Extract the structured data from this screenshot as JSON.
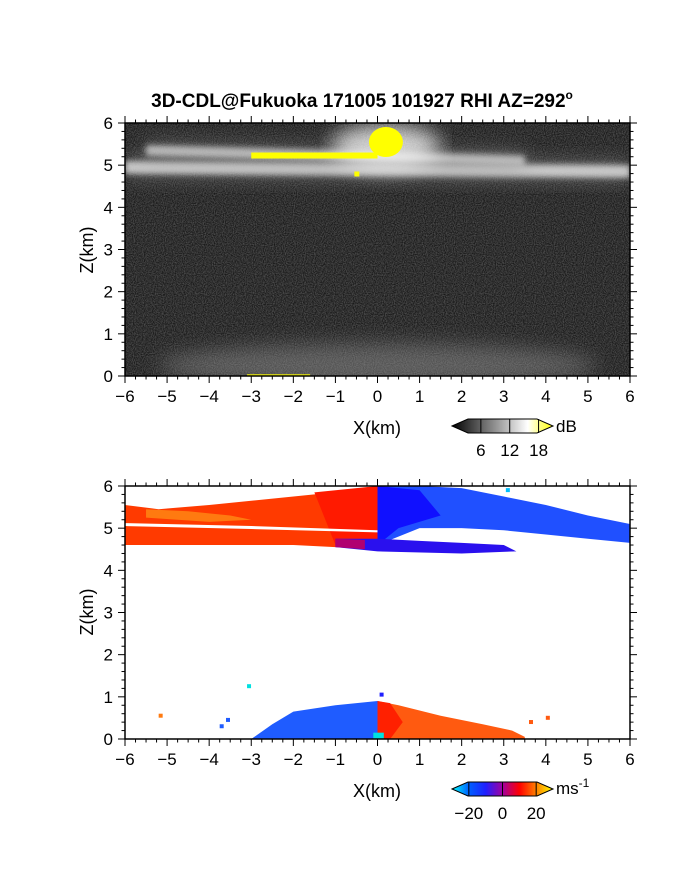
{
  "title": {
    "main": "3D-CDL@Fukuoka 171005 101927 RHI AZ=292",
    "degree": "o"
  },
  "chart_data": [
    {
      "type": "heatmap",
      "panel": "reflectivity",
      "xlabel": "X(km)",
      "ylabel": "Z(km)",
      "xlim": [
        -6,
        6
      ],
      "ylim": [
        0,
        6
      ],
      "xticks": [
        "-6",
        "-5",
        "-4",
        "-3",
        "-2",
        "-1",
        "0",
        "1",
        "2",
        "3",
        "4",
        "5",
        "6"
      ],
      "yticks": [
        "0",
        "1",
        "2",
        "3",
        "4",
        "5",
        "6"
      ],
      "background": "noise",
      "colorbar": {
        "unit": "dB",
        "ticks": [
          "6",
          "12",
          "18"
        ],
        "range": [
          0,
          21
        ],
        "colors": [
          "#000000",
          "#555555",
          "#aaaaaa",
          "#ffffff",
          "#ffff00"
        ]
      },
      "features": [
        {
          "x": [
            -6,
            6
          ],
          "z_center_left": 4.95,
          "z_center_right": 4.85,
          "thickness": 0.3,
          "level": "strong"
        },
        {
          "x": [
            -5.5,
            3.5
          ],
          "z_center_left": 5.35,
          "z_center_right": 5.1,
          "thickness": 0.25,
          "level": "strong"
        },
        {
          "x": [
            -3,
            0
          ],
          "z_center": 5.25,
          "thickness": 0.1,
          "level": "max"
        },
        {
          "x": [
            -0.2,
            0.6
          ],
          "z_center": 5.55,
          "thickness": 0.6,
          "level": "max"
        },
        {
          "x": [
            -6,
            6
          ],
          "z_center": 0.25,
          "thickness": 0.6,
          "level": "weak"
        }
      ]
    },
    {
      "type": "heatmap",
      "panel": "doppler_velocity",
      "xlabel": "X(km)",
      "ylabel": "Z(km)",
      "xlim": [
        -6,
        6
      ],
      "ylim": [
        0,
        6
      ],
      "xticks": [
        "-6",
        "-5",
        "-4",
        "-3",
        "-2",
        "-1",
        "0",
        "1",
        "2",
        "3",
        "4",
        "5",
        "6"
      ],
      "yticks": [
        "0",
        "1",
        "2",
        "3",
        "4",
        "5",
        "6"
      ],
      "colorbar": {
        "unit": "ms",
        "unit_exp": "-1",
        "ticks": [
          "-20",
          "0",
          "20"
        ],
        "range": [
          -30,
          30
        ],
        "colors": [
          "#00ffff",
          "#0060ff",
          "#2020ff",
          "#a000a0",
          "#ff0000",
          "#ff8000",
          "#ffff00"
        ]
      },
      "features": [
        {
          "x": [
            -6,
            0
          ],
          "z_top": 5.55,
          "z_bottom": 4.6,
          "velocity": 8,
          "sign": "positive"
        },
        {
          "x": [
            0,
            6
          ],
          "z_top": 6.0,
          "z_bottom": 4.65,
          "velocity": -14,
          "sign": "negative"
        },
        {
          "x": [
            -1,
            3.3
          ],
          "z_top": 4.8,
          "z_bottom": 4.4,
          "velocity": -14,
          "sign": "negative"
        },
        {
          "x": [
            -3,
            0
          ],
          "z_top": 0.9,
          "z_bottom": 0.0,
          "velocity": -14,
          "sign": "negative"
        },
        {
          "x": [
            0,
            3.5
          ],
          "z_top": 0.85,
          "z_bottom": 0.0,
          "velocity": 10,
          "sign": "positive"
        }
      ]
    }
  ]
}
